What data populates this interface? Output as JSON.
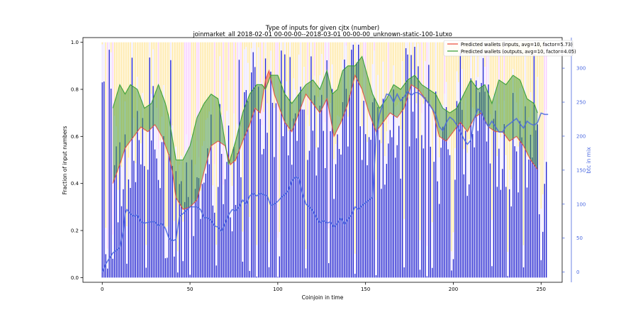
{
  "chart_data": {
    "type": "bar",
    "title": "Type of inputs for given cjtx (number)",
    "subtitle": "joinmarket_all 2018-02-01 00-00-00--2018-03-01 00-00-00_unknown-static-100-1utxo",
    "xlabel": "Coinjoin in time",
    "ylabel": "Fraction of input numbers",
    "y2label": "btc in mix",
    "xlim": [
      -11,
      262
    ],
    "ylim": [
      -0.02,
      1.02
    ],
    "y2lim": [
      -15,
      345
    ],
    "x_ticks": [
      0,
      50,
      100,
      150,
      200,
      250
    ],
    "y_ticks": [
      0.0,
      0.2,
      0.4,
      0.6,
      0.8,
      1.0
    ],
    "y2_ticks": [
      0,
      50,
      100,
      150,
      200,
      250,
      300
    ],
    "grid": false,
    "legend_position": "top-right",
    "bar_count": 254,
    "bar_colors": {
      "fresh": "#1f1fd0",
      "remix": "#ece4ff",
      "other": "#ffd24a",
      "hatch": "#f0a0ff"
    },
    "series": [
      {
        "name": "Predicted wallets (inputs, avg=10, factor=5.73)",
        "color": "#e8483a",
        "points": [
          [
            6,
            0.4
          ],
          [
            10,
            0.48
          ],
          [
            13,
            0.55
          ],
          [
            18,
            0.6
          ],
          [
            22,
            0.64
          ],
          [
            26,
            0.62
          ],
          [
            30,
            0.65
          ],
          [
            34,
            0.6
          ],
          [
            38,
            0.52
          ],
          [
            40,
            0.45
          ],
          [
            42,
            0.34
          ],
          [
            46,
            0.29
          ],
          [
            50,
            0.3
          ],
          [
            54,
            0.33
          ],
          [
            58,
            0.45
          ],
          [
            62,
            0.56
          ],
          [
            66,
            0.58
          ],
          [
            70,
            0.56
          ],
          [
            73,
            0.48
          ],
          [
            76,
            0.5
          ],
          [
            80,
            0.58
          ],
          [
            84,
            0.65
          ],
          [
            87,
            0.72
          ],
          [
            90,
            0.7
          ],
          [
            93,
            0.84
          ],
          [
            95,
            0.88
          ],
          [
            98,
            0.78
          ],
          [
            101,
            0.72
          ],
          [
            104,
            0.66
          ],
          [
            108,
            0.62
          ],
          [
            112,
            0.7
          ],
          [
            116,
            0.78
          ],
          [
            120,
            0.74
          ],
          [
            124,
            0.7
          ],
          [
            128,
            0.76
          ],
          [
            132,
            0.6
          ],
          [
            136,
            0.66
          ],
          [
            140,
            0.74
          ],
          [
            144,
            0.86
          ],
          [
            148,
            0.8
          ],
          [
            152,
            0.7
          ],
          [
            156,
            0.62
          ],
          [
            160,
            0.66
          ],
          [
            164,
            0.7
          ],
          [
            168,
            0.68
          ],
          [
            172,
            0.72
          ],
          [
            176,
            0.82
          ],
          [
            180,
            0.8
          ],
          [
            184,
            0.76
          ],
          [
            188,
            0.72
          ],
          [
            192,
            0.6
          ],
          [
            196,
            0.58
          ],
          [
            200,
            0.62
          ],
          [
            204,
            0.66
          ],
          [
            208,
            0.62
          ],
          [
            212,
            0.68
          ],
          [
            216,
            0.7
          ],
          [
            220,
            0.64
          ],
          [
            224,
            0.62
          ],
          [
            228,
            0.62
          ],
          [
            232,
            0.58
          ],
          [
            236,
            0.6
          ],
          [
            240,
            0.56
          ],
          [
            244,
            0.5
          ],
          [
            248,
            0.46
          ]
        ]
      },
      {
        "name": "Predicted wallets (outputs, avg=10, factor=4.05)",
        "color": "#2e9b2e",
        "points": [
          [
            6,
            0.72
          ],
          [
            10,
            0.82
          ],
          [
            13,
            0.78
          ],
          [
            16,
            0.82
          ],
          [
            20,
            0.8
          ],
          [
            24,
            0.72
          ],
          [
            28,
            0.74
          ],
          [
            32,
            0.82
          ],
          [
            36,
            0.74
          ],
          [
            38,
            0.68
          ],
          [
            42,
            0.5
          ],
          [
            46,
            0.5
          ],
          [
            50,
            0.56
          ],
          [
            54,
            0.68
          ],
          [
            58,
            0.74
          ],
          [
            62,
            0.78
          ],
          [
            66,
            0.76
          ],
          [
            69,
            0.62
          ],
          [
            72,
            0.48
          ],
          [
            76,
            0.58
          ],
          [
            80,
            0.7
          ],
          [
            84,
            0.78
          ],
          [
            88,
            0.82
          ],
          [
            91,
            0.82
          ],
          [
            93,
            0.8
          ],
          [
            96,
            0.86
          ],
          [
            100,
            0.86
          ],
          [
            104,
            0.78
          ],
          [
            108,
            0.74
          ],
          [
            112,
            0.78
          ],
          [
            116,
            0.82
          ],
          [
            120,
            0.84
          ],
          [
            124,
            0.8
          ],
          [
            128,
            0.88
          ],
          [
            131,
            0.78
          ],
          [
            134,
            0.8
          ],
          [
            137,
            0.88
          ],
          [
            140,
            0.9
          ],
          [
            144,
            0.9
          ],
          [
            148,
            0.94
          ],
          [
            151,
            0.86
          ],
          [
            154,
            0.78
          ],
          [
            158,
            0.72
          ],
          [
            162,
            0.76
          ],
          [
            166,
            0.82
          ],
          [
            170,
            0.8
          ],
          [
            174,
            0.84
          ],
          [
            178,
            0.86
          ],
          [
            182,
            0.82
          ],
          [
            186,
            0.8
          ],
          [
            190,
            0.78
          ],
          [
            194,
            0.72
          ],
          [
            198,
            0.7
          ],
          [
            202,
            0.72
          ],
          [
            206,
            0.78
          ],
          [
            210,
            0.84
          ],
          [
            214,
            0.8
          ],
          [
            218,
            0.82
          ],
          [
            222,
            0.74
          ],
          [
            226,
            0.84
          ],
          [
            230,
            0.82
          ],
          [
            234,
            0.86
          ],
          [
            238,
            0.84
          ],
          [
            242,
            0.76
          ],
          [
            246,
            0.74
          ],
          [
            248,
            0.7
          ]
        ]
      },
      {
        "name": "",
        "axis": "y2",
        "color": "#4a68e0",
        "points": [
          [
            0,
            0
          ],
          [
            2,
            12
          ],
          [
            4,
            20
          ],
          [
            6,
            28
          ],
          [
            8,
            32
          ],
          [
            10,
            36
          ],
          [
            12,
            60
          ],
          [
            13,
            86
          ],
          [
            14,
            92
          ],
          [
            16,
            86
          ],
          [
            18,
            82
          ],
          [
            20,
            84
          ],
          [
            22,
            74
          ],
          [
            24,
            72
          ],
          [
            28,
            74
          ],
          [
            30,
            74
          ],
          [
            32,
            68
          ],
          [
            34,
            72
          ],
          [
            36,
            64
          ],
          [
            38,
            50
          ],
          [
            40,
            46
          ],
          [
            42,
            48
          ],
          [
            44,
            82
          ],
          [
            46,
            86
          ],
          [
            50,
            96
          ],
          [
            54,
            96
          ],
          [
            56,
            92
          ],
          [
            58,
            80
          ],
          [
            60,
            80
          ],
          [
            62,
            76
          ],
          [
            64,
            68
          ],
          [
            66,
            66
          ],
          [
            68,
            60
          ],
          [
            70,
            72
          ],
          [
            72,
            84
          ],
          [
            74,
            92
          ],
          [
            76,
            90
          ],
          [
            78,
            96
          ],
          [
            80,
            106
          ],
          [
            82,
            100
          ],
          [
            84,
            112
          ],
          [
            86,
            116
          ],
          [
            88,
            112
          ],
          [
            90,
            116
          ],
          [
            92,
            114
          ],
          [
            94,
            112
          ],
          [
            96,
            98
          ],
          [
            98,
            100
          ],
          [
            100,
            104
          ],
          [
            102,
            110
          ],
          [
            104,
            114
          ],
          [
            106,
            120
          ],
          [
            108,
            134
          ],
          [
            110,
            140
          ],
          [
            112,
            138
          ],
          [
            114,
            116
          ],
          [
            116,
            100
          ],
          [
            118,
            96
          ],
          [
            120,
            90
          ],
          [
            122,
            80
          ],
          [
            124,
            72
          ],
          [
            126,
            76
          ],
          [
            128,
            72
          ],
          [
            130,
            74
          ],
          [
            132,
            66
          ],
          [
            134,
            72
          ],
          [
            136,
            80
          ],
          [
            138,
            70
          ],
          [
            140,
            78
          ],
          [
            142,
            84
          ],
          [
            144,
            96
          ],
          [
            146,
            92
          ],
          [
            148,
            98
          ],
          [
            150,
            102
          ],
          [
            152,
            106
          ],
          [
            154,
            110
          ],
          [
            156,
            200
          ],
          [
            158,
            232
          ],
          [
            160,
            248
          ],
          [
            162,
            262
          ],
          [
            164,
            260
          ],
          [
            166,
            250
          ],
          [
            168,
            262
          ],
          [
            170,
            252
          ],
          [
            172,
            258
          ],
          [
            174,
            266
          ],
          [
            176,
            260
          ],
          [
            178,
            264
          ],
          [
            180,
            264
          ],
          [
            182,
            260
          ],
          [
            184,
            254
          ],
          [
            186,
            248
          ],
          [
            188,
            240
          ],
          [
            190,
            232
          ],
          [
            192,
            214
          ],
          [
            194,
            208
          ],
          [
            196,
            220
          ],
          [
            198,
            228
          ],
          [
            200,
            224
          ],
          [
            202,
            216
          ],
          [
            204,
            206
          ],
          [
            206,
            196
          ],
          [
            208,
            188
          ],
          [
            210,
            194
          ],
          [
            212,
            226
          ],
          [
            214,
            240
          ],
          [
            216,
            236
          ],
          [
            218,
            222
          ],
          [
            220,
            214
          ],
          [
            222,
            222
          ],
          [
            224,
            214
          ],
          [
            226,
            206
          ],
          [
            228,
            206
          ],
          [
            230,
            214
          ],
          [
            232,
            218
          ],
          [
            234,
            222
          ],
          [
            236,
            226
          ],
          [
            238,
            218
          ],
          [
            240,
            212
          ],
          [
            242,
            222
          ],
          [
            244,
            218
          ],
          [
            246,
            216
          ],
          [
            248,
            220
          ],
          [
            250,
            234
          ],
          [
            252,
            232
          ],
          [
            254,
            232
          ]
        ]
      }
    ]
  }
}
